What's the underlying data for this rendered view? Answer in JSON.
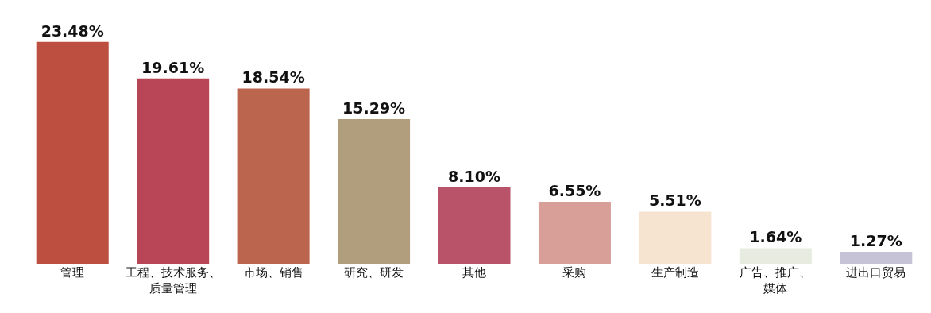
{
  "chart_data": {
    "type": "bar",
    "categories": [
      "管理",
      "工程、技术服务、质量管理",
      "市场、销售",
      "研究、研发",
      "其他",
      "采购",
      "生产制造",
      "广告、推广、媒体",
      "进出口贸易"
    ],
    "values": [
      23.48,
      19.61,
      18.54,
      15.29,
      8.1,
      6.55,
      5.51,
      1.64,
      1.27
    ],
    "value_labels": [
      "23.48%",
      "19.61%",
      "18.54%",
      "15.29%",
      "8.10%",
      "6.55%",
      "5.51%",
      "1.64%",
      "1.27%"
    ],
    "colors": [
      "#bd4f40",
      "#b94656",
      "#bb654f",
      "#b19e7c",
      "#b9536a",
      "#d89e98",
      "#f6e3d0",
      "#e8ebe0",
      "#c7c3d6"
    ]
  }
}
